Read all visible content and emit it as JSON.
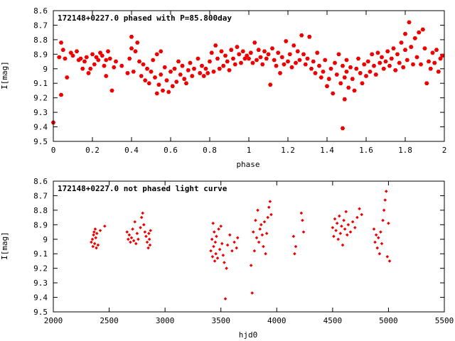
{
  "colors": {
    "points": "#ee0000",
    "axes": "#000000",
    "background": "#ffffff"
  },
  "chart_data": [
    {
      "type": "scatter",
      "title": "172148+0227.0 phased with P=85.800day",
      "xlabel": "phase",
      "ylabel": "I[mag]",
      "xlim": [
        0,
        2
      ],
      "ylim": [
        9.5,
        8.6
      ],
      "y_inverted": true,
      "grid": false,
      "marker": "filled-hexagon",
      "x_ticks": [
        0,
        0.2,
        0.4,
        0.6,
        0.8,
        1,
        1.2,
        1.4,
        1.6,
        1.8,
        2
      ],
      "x_tick_labels": [
        "0",
        "0.2",
        "0.4",
        "0.6",
        "0.8",
        "1",
        "1.2",
        "1.4",
        "1.6",
        "1.8",
        "2"
      ],
      "y_ticks": [
        8.6,
        8.7,
        8.8,
        8.9,
        9,
        9.1,
        9.2,
        9.3,
        9.4,
        9.5
      ],
      "y_tick_labels": [
        "8.6",
        "8.7",
        "8.8",
        "8.9",
        "9",
        "9.1",
        "9.2",
        "9.3",
        "9.4",
        "9.5"
      ],
      "points": [
        [
          0.0,
          9.37
        ],
        [
          0.03,
          8.92
        ],
        [
          0.04,
          8.82
        ],
        [
          0.05,
          8.87
        ],
        [
          0.06,
          8.93
        ],
        [
          0.04,
          9.18
        ],
        [
          0.07,
          9.06
        ],
        [
          0.09,
          8.89
        ],
        [
          0.1,
          8.91
        ],
        [
          0.12,
          8.88
        ],
        [
          0.13,
          8.94
        ],
        [
          0.14,
          8.93
        ],
        [
          0.15,
          9.0
        ],
        [
          0.16,
          8.95
        ],
        [
          0.17,
          8.92
        ],
        [
          0.18,
          9.03
        ],
        [
          0.19,
          9.0
        ],
        [
          0.2,
          8.9
        ],
        [
          0.21,
          8.97
        ],
        [
          0.22,
          8.92
        ],
        [
          0.23,
          8.94
        ],
        [
          0.24,
          8.89
        ],
        [
          0.25,
          8.91
        ],
        [
          0.26,
          8.98
        ],
        [
          0.27,
          9.05
        ],
        [
          0.27,
          8.94
        ],
        [
          0.28,
          8.88
        ],
        [
          0.29,
          8.93
        ],
        [
          0.3,
          9.15
        ],
        [
          0.31,
          8.99
        ],
        [
          0.32,
          8.95
        ],
        [
          0.35,
          8.98
        ],
        [
          0.38,
          9.03
        ],
        [
          0.39,
          8.93
        ],
        [
          0.4,
          8.86
        ],
        [
          0.4,
          8.78
        ],
        [
          0.41,
          9.02
        ],
        [
          0.42,
          8.88
        ],
        [
          0.43,
          8.82
        ],
        [
          0.44,
          8.95
        ],
        [
          0.45,
          9.05
        ],
        [
          0.46,
          8.97
        ],
        [
          0.47,
          9.08
        ],
        [
          0.48,
          9.0
        ],
        [
          0.49,
          9.1
        ],
        [
          0.5,
          9.02
        ],
        [
          0.51,
          8.94
        ],
        [
          0.52,
          9.06
        ],
        [
          0.53,
          9.17
        ],
        [
          0.53,
          8.9
        ],
        [
          0.54,
          9.11
        ],
        [
          0.55,
          9.04
        ],
        [
          0.55,
          8.88
        ],
        [
          0.56,
          9.15
        ],
        [
          0.57,
          8.99
        ],
        [
          0.58,
          9.08
        ],
        [
          0.59,
          9.16
        ],
        [
          0.6,
          9.02
        ],
        [
          0.61,
          9.12
        ],
        [
          0.62,
          9.0
        ],
        [
          0.63,
          9.09
        ],
        [
          0.64,
          8.95
        ],
        [
          0.65,
          9.04
        ],
        [
          0.66,
          8.98
        ],
        [
          0.67,
          9.07
        ],
        [
          0.68,
          9.1
        ],
        [
          0.69,
          9.01
        ],
        [
          0.7,
          8.96
        ],
        [
          0.71,
          9.05
        ],
        [
          0.72,
          9.0
        ],
        [
          0.74,
          8.93
        ],
        [
          0.75,
          9.03
        ],
        [
          0.76,
          8.98
        ],
        [
          0.77,
          9.05
        ],
        [
          0.78,
          9.0
        ],
        [
          0.79,
          9.03
        ],
        [
          0.8,
          8.95
        ],
        [
          0.81,
          8.89
        ],
        [
          0.82,
          9.02
        ],
        [
          0.83,
          8.84
        ],
        [
          0.84,
          8.93
        ],
        [
          0.85,
          9.0
        ],
        [
          0.86,
          8.88
        ],
        [
          0.87,
          8.98
        ],
        [
          0.88,
          8.91
        ],
        [
          0.89,
          8.95
        ],
        [
          0.9,
          9.01
        ],
        [
          0.91,
          8.87
        ],
        [
          0.92,
          8.93
        ],
        [
          0.93,
          8.97
        ],
        [
          0.94,
          8.85
        ],
        [
          0.95,
          8.9
        ],
        [
          0.96,
          8.96
        ],
        [
          0.97,
          8.88
        ],
        [
          0.98,
          8.93
        ],
        [
          0.99,
          8.91
        ],
        [
          1.0,
          8.93
        ],
        [
          1.01,
          8.89
        ],
        [
          1.02,
          8.96
        ],
        [
          1.03,
          8.82
        ],
        [
          1.04,
          8.94
        ],
        [
          1.05,
          8.87
        ],
        [
          1.06,
          8.92
        ],
        [
          1.07,
          8.97
        ],
        [
          1.08,
          8.88
        ],
        [
          1.09,
          8.93
        ],
        [
          1.1,
          8.9
        ],
        [
          1.11,
          9.11
        ],
        [
          1.12,
          8.86
        ],
        [
          1.13,
          8.94
        ],
        [
          1.14,
          8.98
        ],
        [
          1.15,
          8.89
        ],
        [
          1.16,
          9.03
        ],
        [
          1.17,
          8.92
        ],
        [
          1.18,
          8.97
        ],
        [
          1.19,
          8.81
        ],
        [
          1.2,
          8.95
        ],
        [
          1.21,
          8.9
        ],
        [
          1.22,
          8.99
        ],
        [
          1.23,
          8.84
        ],
        [
          1.24,
          8.96
        ],
        [
          1.25,
          8.88
        ],
        [
          1.26,
          8.94
        ],
        [
          1.27,
          8.77
        ],
        [
          1.28,
          8.9
        ],
        [
          1.29,
          8.97
        ],
        [
          1.3,
          8.93
        ],
        [
          1.31,
          8.78
        ],
        [
          1.32,
          9.0
        ],
        [
          1.33,
          8.95
        ],
        [
          1.34,
          9.03
        ],
        [
          1.35,
          8.89
        ],
        [
          1.36,
          8.98
        ],
        [
          1.37,
          9.06
        ],
        [
          1.38,
          9.02
        ],
        [
          1.39,
          8.94
        ],
        [
          1.4,
          9.12
        ],
        [
          1.41,
          9.07
        ],
        [
          1.42,
          9.0
        ],
        [
          1.43,
          9.17
        ],
        [
          1.44,
          8.96
        ],
        [
          1.45,
          9.04
        ],
        [
          1.46,
          8.9
        ],
        [
          1.47,
          9.1
        ],
        [
          1.48,
          9.41
        ],
        [
          1.48,
          8.98
        ],
        [
          1.49,
          9.06
        ],
        [
          1.49,
          9.21
        ],
        [
          1.5,
          8.94
        ],
        [
          1.5,
          9.02
        ],
        [
          1.51,
          9.13
        ],
        [
          1.52,
          8.99
        ],
        [
          1.53,
          9.07
        ],
        [
          1.54,
          9.15
        ],
        [
          1.55,
          9.0
        ],
        [
          1.56,
          8.93
        ],
        [
          1.57,
          9.03
        ],
        [
          1.58,
          9.1
        ],
        [
          1.59,
          8.97
        ],
        [
          1.6,
          9.05
        ],
        [
          1.61,
          8.95
        ],
        [
          1.62,
          9.02
        ],
        [
          1.63,
          8.9
        ],
        [
          1.64,
          8.98
        ],
        [
          1.65,
          9.04
        ],
        [
          1.66,
          8.89
        ],
        [
          1.67,
          8.96
        ],
        [
          1.68,
          8.92
        ],
        [
          1.69,
          9.0
        ],
        [
          1.7,
          8.95
        ],
        [
          1.71,
          8.88
        ],
        [
          1.72,
          8.98
        ],
        [
          1.73,
          8.93
        ],
        [
          1.74,
          8.86
        ],
        [
          1.75,
          9.01
        ],
        [
          1.76,
          8.9
        ],
        [
          1.77,
          8.96
        ],
        [
          1.78,
          8.82
        ],
        [
          1.79,
          8.99
        ],
        [
          1.8,
          8.87
        ],
        [
          1.8,
          8.76
        ],
        [
          1.81,
          8.94
        ],
        [
          1.82,
          8.68
        ],
        [
          1.83,
          8.85
        ],
        [
          1.84,
          8.97
        ],
        [
          1.85,
          8.79
        ],
        [
          1.86,
          8.92
        ],
        [
          1.87,
          8.75
        ],
        [
          1.88,
          8.97
        ],
        [
          1.89,
          8.73
        ],
        [
          1.9,
          8.86
        ],
        [
          1.91,
          9.1
        ],
        [
          1.92,
          8.95
        ],
        [
          1.93,
          9.0
        ],
        [
          1.94,
          8.89
        ],
        [
          1.95,
          8.96
        ],
        [
          1.96,
          8.87
        ],
        [
          1.97,
          9.02
        ],
        [
          1.98,
          8.93
        ],
        [
          1.99,
          8.91
        ]
      ]
    },
    {
      "type": "scatter",
      "title": "172148+0227.0 not phased light curve",
      "xlabel": "hjd0",
      "ylabel": "I[mag]",
      "xlim": [
        2000,
        5500
      ],
      "ylim": [
        9.5,
        8.6
      ],
      "y_inverted": true,
      "grid": false,
      "marker": "small-filled-diamond",
      "x_ticks": [
        2000,
        2500,
        3000,
        3500,
        4000,
        4500,
        5000,
        5500
      ],
      "x_tick_labels": [
        "2000",
        "2500",
        "3000",
        "3500",
        "4000",
        "4500",
        "5000",
        "5500"
      ],
      "y_ticks": [
        8.6,
        8.7,
        8.8,
        8.9,
        9,
        9.1,
        9.2,
        9.3,
        9.4,
        9.5
      ],
      "y_tick_labels": [
        "8.6",
        "8.7",
        "8.8",
        "8.9",
        "9",
        "9.1",
        "9.2",
        "9.3",
        "9.4",
        "9.5"
      ],
      "points": [
        [
          2340,
          9.02
        ],
        [
          2350,
          9.0
        ],
        [
          2355,
          9.05
        ],
        [
          2360,
          8.97
        ],
        [
          2365,
          8.95
        ],
        [
          2370,
          9.03
        ],
        [
          2375,
          8.93
        ],
        [
          2380,
          8.99
        ],
        [
          2385,
          9.06
        ],
        [
          2390,
          8.96
        ],
        [
          2400,
          9.04
        ],
        [
          2420,
          8.94
        ],
        [
          2460,
          8.91
        ],
        [
          2660,
          8.95
        ],
        [
          2670,
          9.0
        ],
        [
          2680,
          8.97
        ],
        [
          2690,
          9.02
        ],
        [
          2700,
          8.99
        ],
        [
          2710,
          8.93
        ],
        [
          2720,
          9.01
        ],
        [
          2730,
          8.88
        ],
        [
          2740,
          9.03
        ],
        [
          2750,
          8.96
        ],
        [
          2760,
          9.0
        ],
        [
          2780,
          8.92
        ],
        [
          2790,
          8.85
        ],
        [
          2800,
          8.82
        ],
        [
          2810,
          8.9
        ],
        [
          2820,
          8.95
        ],
        [
          2830,
          8.98
        ],
        [
          2840,
          9.02
        ],
        [
          2850,
          9.06
        ],
        [
          2855,
          8.96
        ],
        [
          2860,
          9.0
        ],
        [
          2865,
          9.04
        ],
        [
          2870,
          8.94
        ],
        [
          3410,
          9.08
        ],
        [
          3420,
          9.0
        ],
        [
          3425,
          9.12
        ],
        [
          3430,
          8.89
        ],
        [
          3435,
          9.05
        ],
        [
          3440,
          8.95
        ],
        [
          3445,
          9.15
        ],
        [
          3450,
          9.02
        ],
        [
          3455,
          9.1
        ],
        [
          3460,
          8.98
        ],
        [
          3470,
          9.13
        ],
        [
          3480,
          8.93
        ],
        [
          3490,
          9.07
        ],
        [
          3500,
          8.91
        ],
        [
          3510,
          9.03
        ],
        [
          3520,
          9.11
        ],
        [
          3530,
          9.16
        ],
        [
          3540,
          9.41
        ],
        [
          3550,
          9.2
        ],
        [
          3560,
          9.04
        ],
        [
          3580,
          8.97
        ],
        [
          3600,
          9.08
        ],
        [
          3620,
          9.02
        ],
        [
          3640,
          9.06
        ],
        [
          3650,
          8.99
        ],
        [
          3770,
          9.18
        ],
        [
          3780,
          9.37
        ],
        [
          3790,
          8.95
        ],
        [
          3800,
          9.08
        ],
        [
          3810,
          8.87
        ],
        [
          3820,
          8.99
        ],
        [
          3830,
          8.8
        ],
        [
          3840,
          9.02
        ],
        [
          3850,
          8.93
        ],
        [
          3860,
          8.9
        ],
        [
          3870,
          8.97
        ],
        [
          3880,
          9.05
        ],
        [
          3890,
          8.88
        ],
        [
          3900,
          9.1
        ],
        [
          3910,
          8.96
        ],
        [
          3920,
          8.85
        ],
        [
          3930,
          8.78
        ],
        [
          3940,
          8.74
        ],
        [
          3950,
          8.83
        ],
        [
          4150,
          8.98
        ],
        [
          4160,
          9.1
        ],
        [
          4170,
          9.05
        ],
        [
          4220,
          8.82
        ],
        [
          4230,
          8.87
        ],
        [
          4240,
          8.95
        ],
        [
          4500,
          8.92
        ],
        [
          4510,
          8.98
        ],
        [
          4520,
          8.86
        ],
        [
          4530,
          8.94
        ],
        [
          4540,
          8.89
        ],
        [
          4550,
          9.0
        ],
        [
          4560,
          8.84
        ],
        [
          4570,
          8.96
        ],
        [
          4580,
          8.91
        ],
        [
          4590,
          9.04
        ],
        [
          4600,
          8.87
        ],
        [
          4610,
          8.93
        ],
        [
          4620,
          8.81
        ],
        [
          4630,
          8.97
        ],
        [
          4640,
          8.9
        ],
        [
          4660,
          8.95
        ],
        [
          4680,
          8.88
        ],
        [
          4700,
          8.92
        ],
        [
          4720,
          8.85
        ],
        [
          4740,
          8.79
        ],
        [
          4760,
          8.83
        ],
        [
          4870,
          8.93
        ],
        [
          4880,
          9.02
        ],
        [
          4890,
          8.97
        ],
        [
          4900,
          9.06
        ],
        [
          4910,
          8.99
        ],
        [
          4920,
          9.1
        ],
        [
          4930,
          8.95
        ],
        [
          4940,
          9.03
        ],
        [
          4950,
          8.87
        ],
        [
          4960,
          8.8
        ],
        [
          4970,
          8.73
        ],
        [
          4980,
          8.67
        ],
        [
          4990,
          9.12
        ],
        [
          5000,
          8.89
        ],
        [
          5010,
          9.15
        ]
      ]
    }
  ]
}
